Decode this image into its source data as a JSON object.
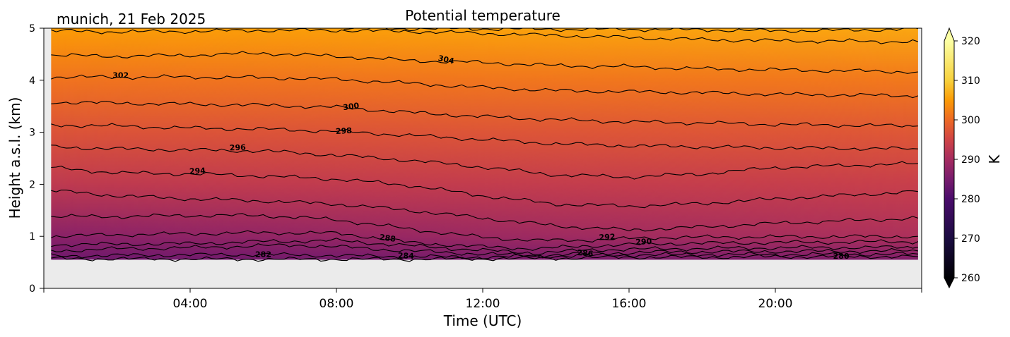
{
  "chart_data": {
    "type": "heatmap",
    "title": "Potential temperature",
    "subtitle": "munich, 21 Feb 2025",
    "xlabel": "Time (UTC)",
    "ylabel": "Height a.s.l. (km)",
    "xlim": [
      0,
      24
    ],
    "ylim": [
      0,
      5
    ],
    "x_ticks": [
      "04:00",
      "08:00",
      "12:00",
      "16:00",
      "20:00"
    ],
    "x_tick_values": [
      4,
      8,
      12,
      16,
      20
    ],
    "y_ticks": [
      "0",
      "1",
      "2",
      "3",
      "4",
      "5"
    ],
    "y_tick_values": [
      0,
      1,
      2,
      3,
      4,
      5
    ],
    "data_extent": {
      "x": [
        0.2,
        23.9
      ],
      "y": [
        0.55,
        5.0
      ]
    },
    "missing_color": "#ebebeb",
    "colormap": "inferno",
    "colorbar": {
      "label": "K",
      "range": [
        260,
        320
      ],
      "ticks": [
        "260",
        "270",
        "280",
        "290",
        "300",
        "310",
        "320"
      ],
      "tick_values": [
        260,
        270,
        280,
        290,
        300,
        310,
        320
      ],
      "extend": "both",
      "stops": [
        {
          "value": 260,
          "color": "#000004"
        },
        {
          "value": 270,
          "color": "#1b0c41"
        },
        {
          "value": 280,
          "color": "#4a0c6b"
        },
        {
          "value": 285,
          "color": "#781c6d"
        },
        {
          "value": 290,
          "color": "#a52c60"
        },
        {
          "value": 295,
          "color": "#cf4446"
        },
        {
          "value": 300,
          "color": "#ed6925"
        },
        {
          "value": 305,
          "color": "#fb9b06"
        },
        {
          "value": 310,
          "color": "#f7d13d"
        },
        {
          "value": 320,
          "color": "#fcffa4"
        }
      ]
    },
    "background_field": {
      "heights": [
        0.55,
        1.0,
        2.0,
        3.0,
        4.0,
        5.0
      ],
      "early_values": [
        284,
        287,
        293,
        297,
        301,
        305
      ],
      "late_values": [
        286,
        291,
        294,
        297.5,
        301.5,
        306
      ]
    },
    "contours": [
      {
        "level": 280,
        "label": "280",
        "x": [
          0.2,
          6,
          10,
          14,
          16,
          18,
          20,
          23.9
        ],
        "y": [
          0.57,
          0.56,
          0.56,
          0.58,
          0.6,
          0.6,
          0.61,
          0.61
        ]
      },
      {
        "level": 282,
        "label": "282",
        "x": [
          0.2,
          3,
          6,
          8,
          10,
          12,
          14,
          16,
          18,
          20,
          23.9
        ],
        "y": [
          0.62,
          0.64,
          0.65,
          0.63,
          0.61,
          0.6,
          0.62,
          0.64,
          0.65,
          0.65,
          0.66
        ]
      },
      {
        "level": 284,
        "label": "284",
        "x": [
          0.2,
          2,
          4,
          6,
          7,
          8,
          10,
          12,
          13.5,
          15,
          17,
          20,
          23.9
        ],
        "y": [
          0.72,
          0.76,
          0.78,
          0.82,
          0.83,
          0.8,
          0.72,
          0.66,
          0.63,
          0.67,
          0.7,
          0.71,
          0.72
        ]
      },
      {
        "level": 286,
        "label": "286",
        "x": [
          0.2,
          2,
          4,
          6,
          8,
          10,
          12,
          13.5,
          15,
          17,
          20,
          23.9
        ],
        "y": [
          0.84,
          0.85,
          0.86,
          0.9,
          0.92,
          0.82,
          0.73,
          0.68,
          0.74,
          0.76,
          0.78,
          0.79
        ]
      },
      {
        "level": 288,
        "label": "288",
        "x": [
          0.2,
          2,
          4,
          6,
          8,
          9,
          10,
          12,
          13.5,
          15,
          17,
          20,
          23.9
        ],
        "y": [
          1.0,
          1.03,
          1.05,
          1.07,
          1.06,
          0.98,
          0.88,
          0.8,
          0.76,
          0.82,
          0.86,
          0.88,
          0.9
        ]
      },
      {
        "level": 290,
        "label": "290",
        "x": [
          0.2,
          2,
          4,
          6,
          8,
          10,
          12,
          13.5,
          15,
          17,
          20,
          23.9
        ],
        "y": [
          1.38,
          1.38,
          1.4,
          1.4,
          1.32,
          1.14,
          0.98,
          0.92,
          0.93,
          0.98,
          0.99,
          1.0
        ]
      },
      {
        "level": 292,
        "label": "292",
        "x": [
          0.2,
          2,
          4,
          6,
          8,
          10,
          12,
          14,
          16,
          18,
          20,
          23.9
        ],
        "y": [
          1.88,
          1.78,
          1.72,
          1.68,
          1.62,
          1.5,
          1.35,
          1.2,
          1.12,
          1.18,
          1.25,
          1.35
        ]
      },
      {
        "level": 294,
        "label": "294",
        "x": [
          0.2,
          2,
          4,
          6,
          8,
          10,
          12,
          14,
          16,
          18,
          20,
          23.9
        ],
        "y": [
          2.32,
          2.22,
          2.2,
          2.16,
          2.1,
          1.98,
          1.78,
          1.62,
          1.58,
          1.63,
          1.72,
          1.86
        ]
      },
      {
        "level": 296,
        "label": "296",
        "x": [
          0.2,
          2,
          4,
          6,
          8,
          10,
          12,
          14,
          16,
          18,
          20,
          23.9
        ],
        "y": [
          2.72,
          2.68,
          2.66,
          2.64,
          2.56,
          2.46,
          2.33,
          2.18,
          2.14,
          2.2,
          2.32,
          2.4
        ]
      },
      {
        "level": 298,
        "label": "298",
        "x": [
          0.2,
          2,
          4,
          6,
          8,
          10,
          12,
          14,
          16,
          18,
          20,
          23.9
        ],
        "y": [
          3.14,
          3.12,
          3.08,
          3.06,
          3.02,
          2.94,
          2.86,
          2.78,
          2.74,
          2.72,
          2.7,
          2.68
        ]
      },
      {
        "level": 300,
        "label": "300",
        "x": [
          0.2,
          2,
          4,
          6,
          8,
          10,
          12,
          14,
          16,
          18,
          20,
          23.9
        ],
        "y": [
          3.58,
          3.56,
          3.54,
          3.52,
          3.48,
          3.38,
          3.3,
          3.24,
          3.2,
          3.18,
          3.15,
          3.12
        ]
      },
      {
        "level": 302,
        "label": "302",
        "x": [
          0.2,
          2,
          4,
          6,
          8,
          10,
          12,
          14,
          16,
          18,
          20,
          23.9
        ],
        "y": [
          4.06,
          4.06,
          4.06,
          4.05,
          4.02,
          3.94,
          3.86,
          3.8,
          3.78,
          3.76,
          3.73,
          3.7
        ]
      },
      {
        "level": 304,
        "label": "304",
        "x": [
          0.2,
          2,
          4,
          6,
          8,
          10,
          11,
          12,
          14,
          16,
          18,
          20,
          23.9
        ],
        "y": [
          4.48,
          4.46,
          4.48,
          4.52,
          4.46,
          4.38,
          4.36,
          4.34,
          4.28,
          4.26,
          4.22,
          4.2,
          4.16
        ]
      },
      {
        "level": 306,
        "label": "",
        "x": [
          0.2,
          2,
          4,
          6,
          8,
          10,
          12,
          14,
          16,
          18,
          20,
          23.9
        ],
        "y": [
          4.95,
          4.93,
          4.94,
          4.96,
          4.96,
          4.94,
          4.9,
          4.86,
          4.82,
          4.78,
          4.76,
          4.74
        ]
      },
      {
        "level": 308,
        "label": "",
        "x": [
          8.2,
          10,
          12,
          14,
          16,
          18,
          20,
          22,
          23.9
        ],
        "y": [
          5.0,
          4.99,
          4.99,
          4.98,
          4.98,
          4.97,
          4.95,
          4.96,
          4.99
        ]
      }
    ],
    "contour_labels": [
      {
        "label": "280",
        "x": 21.8,
        "y": 0.62,
        "angle": 0
      },
      {
        "label": "282",
        "x": 6.0,
        "y": 0.66,
        "angle": 0
      },
      {
        "label": "284",
        "x": 9.9,
        "y": 0.63,
        "angle": 2
      },
      {
        "label": "286",
        "x": 14.8,
        "y": 0.68,
        "angle": 5
      },
      {
        "label": "288",
        "x": 9.4,
        "y": 0.97,
        "angle": 8
      },
      {
        "label": "290",
        "x": 16.4,
        "y": 0.9,
        "angle": -3
      },
      {
        "label": "292",
        "x": 15.4,
        "y": 0.99,
        "angle": -3
      },
      {
        "label": "294",
        "x": 4.2,
        "y": 2.26,
        "angle": -3
      },
      {
        "label": "296",
        "x": 5.3,
        "y": 2.71,
        "angle": -2
      },
      {
        "label": "298",
        "x": 8.2,
        "y": 3.03,
        "angle": -3
      },
      {
        "label": "300",
        "x": 8.4,
        "y": 3.5,
        "angle": -8
      },
      {
        "label": "302",
        "x": 2.1,
        "y": 4.1,
        "angle": 0
      },
      {
        "label": "304",
        "x": 11.0,
        "y": 4.4,
        "angle": 12
      }
    ]
  }
}
